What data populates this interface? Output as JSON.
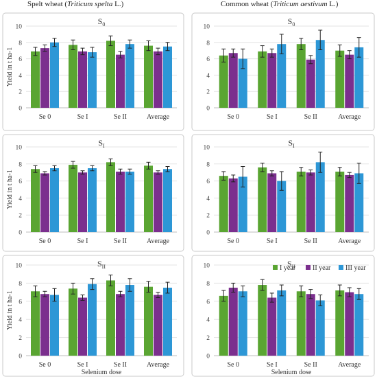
{
  "headers": {
    "left": {
      "prefix": "Spelt wheat (",
      "species": "Triticum spelta",
      "suffix": " L.)"
    },
    "right": {
      "prefix": "Common wheat (",
      "species": "Triticum aestivum",
      "suffix": " L.)"
    }
  },
  "colors": {
    "I year": "#5aa532",
    "II year": "#7b2f8e",
    "III year": "#2d97d6"
  },
  "chart_data": [
    {
      "type": "bar",
      "id": "spelt-s0",
      "title_base": "S",
      "title_sub": "0",
      "ylabel": "Yield in t ha-1",
      "ylim": [
        0,
        10
      ],
      "yticks": [
        0,
        2,
        4,
        6,
        8,
        10
      ],
      "categories": [
        "Se 0",
        "Se I",
        "Se II",
        "Average"
      ],
      "series": [
        {
          "name": "I year",
          "values": [
            6.9,
            7.7,
            8.2,
            7.6
          ],
          "errors": [
            0.5,
            0.6,
            0.6,
            0.6
          ]
        },
        {
          "name": "II year",
          "values": [
            7.3,
            6.9,
            6.5,
            6.9
          ],
          "errors": [
            0.4,
            0.4,
            0.4,
            0.4
          ]
        },
        {
          "name": "III year",
          "values": [
            8.0,
            6.8,
            7.8,
            7.5
          ],
          "errors": [
            0.5,
            0.6,
            0.5,
            0.5
          ]
        }
      ]
    },
    {
      "type": "bar",
      "id": "common-s0",
      "title_base": "S",
      "title_sub": "0",
      "ylabel": "",
      "ylim": [
        0,
        10
      ],
      "yticks": [
        0,
        2,
        4,
        6,
        8,
        10
      ],
      "categories": [
        "Se 0",
        "Se I",
        "Se II",
        "Average"
      ],
      "series": [
        {
          "name": "I year",
          "values": [
            6.4,
            6.9,
            7.8,
            7.0
          ],
          "errors": [
            0.8,
            0.7,
            0.7,
            0.7
          ]
        },
        {
          "name": "II year",
          "values": [
            6.7,
            6.7,
            5.9,
            6.5
          ],
          "errors": [
            0.5,
            0.5,
            0.5,
            0.5
          ]
        },
        {
          "name": "III year",
          "values": [
            6.0,
            7.8,
            8.3,
            7.4
          ],
          "errors": [
            1.2,
            1.2,
            1.2,
            1.2
          ]
        }
      ]
    },
    {
      "type": "bar",
      "id": "spelt-s1",
      "title_base": "S",
      "title_sub": "I",
      "ylabel": "Yield in t ha-1",
      "ylim": [
        0,
        10
      ],
      "yticks": [
        0,
        2,
        4,
        6,
        8,
        10
      ],
      "categories": [
        "Se 0",
        "Se I",
        "Se II",
        "Average"
      ],
      "series": [
        {
          "name": "I year",
          "values": [
            7.4,
            7.9,
            8.2,
            7.8
          ],
          "errors": [
            0.4,
            0.4,
            0.4,
            0.4
          ]
        },
        {
          "name": "II year",
          "values": [
            6.9,
            7.0,
            7.1,
            7.0
          ],
          "errors": [
            0.2,
            0.2,
            0.3,
            0.2
          ]
        },
        {
          "name": "III year",
          "values": [
            7.5,
            7.5,
            7.1,
            7.4
          ],
          "errors": [
            0.3,
            0.3,
            0.3,
            0.3
          ]
        }
      ]
    },
    {
      "type": "bar",
      "id": "common-s1",
      "title_base": "S",
      "title_sub": "I",
      "ylabel": "",
      "ylim": [
        0,
        10
      ],
      "yticks": [
        0,
        2,
        4,
        6,
        8,
        10
      ],
      "categories": [
        "Se 0",
        "Se I",
        "Se II",
        "Average"
      ],
      "series": [
        {
          "name": "I year",
          "values": [
            6.6,
            7.6,
            7.1,
            7.1
          ],
          "errors": [
            0.5,
            0.5,
            0.5,
            0.5
          ]
        },
        {
          "name": "II year",
          "values": [
            6.3,
            6.9,
            7.0,
            6.7
          ],
          "errors": [
            0.4,
            0.3,
            0.3,
            0.3
          ]
        },
        {
          "name": "III year",
          "values": [
            6.5,
            6.0,
            8.2,
            6.9
          ],
          "errors": [
            1.2,
            1.1,
            1.2,
            1.2
          ]
        }
      ]
    },
    {
      "type": "bar",
      "id": "spelt-s2",
      "title_base": "S",
      "title_sub": "II",
      "ylabel": "Yield in t ha-1",
      "xlabel": "Selenium dose",
      "ylim": [
        0,
        10
      ],
      "yticks": [
        0,
        2,
        4,
        6,
        8,
        10
      ],
      "categories": [
        "Se 0",
        "Se I",
        "Se II",
        "Average"
      ],
      "series": [
        {
          "name": "I year",
          "values": [
            7.1,
            7.4,
            8.3,
            7.6
          ],
          "errors": [
            0.6,
            0.6,
            0.6,
            0.6
          ]
        },
        {
          "name": "II year",
          "values": [
            6.8,
            6.4,
            6.8,
            6.7
          ],
          "errors": [
            0.3,
            0.3,
            0.3,
            0.3
          ]
        },
        {
          "name": "III year",
          "values": [
            6.7,
            7.9,
            7.8,
            7.5
          ],
          "errors": [
            0.7,
            0.6,
            0.7,
            0.6
          ]
        }
      ]
    },
    {
      "type": "bar",
      "id": "common-s2",
      "title_base": "S",
      "title_sub": "II",
      "ylabel": "",
      "xlabel": "Selenium dose",
      "ylim": [
        0,
        10
      ],
      "yticks": [
        0,
        2,
        4,
        6,
        8,
        10
      ],
      "categories": [
        "Se 0",
        "Se I",
        "Se II",
        "Average"
      ],
      "legend": [
        "I  year",
        "II year",
        "III year"
      ],
      "series": [
        {
          "name": "I year",
          "values": [
            6.6,
            7.8,
            7.1,
            7.2
          ],
          "errors": [
            0.6,
            0.6,
            0.6,
            0.6
          ]
        },
        {
          "name": "II year",
          "values": [
            7.5,
            6.4,
            6.8,
            7.0
          ],
          "errors": [
            0.5,
            0.5,
            0.5,
            0.5
          ]
        },
        {
          "name": "III year",
          "values": [
            7.1,
            7.2,
            6.1,
            6.8
          ],
          "errors": [
            0.6,
            0.6,
            0.6,
            0.6
          ]
        }
      ]
    }
  ]
}
